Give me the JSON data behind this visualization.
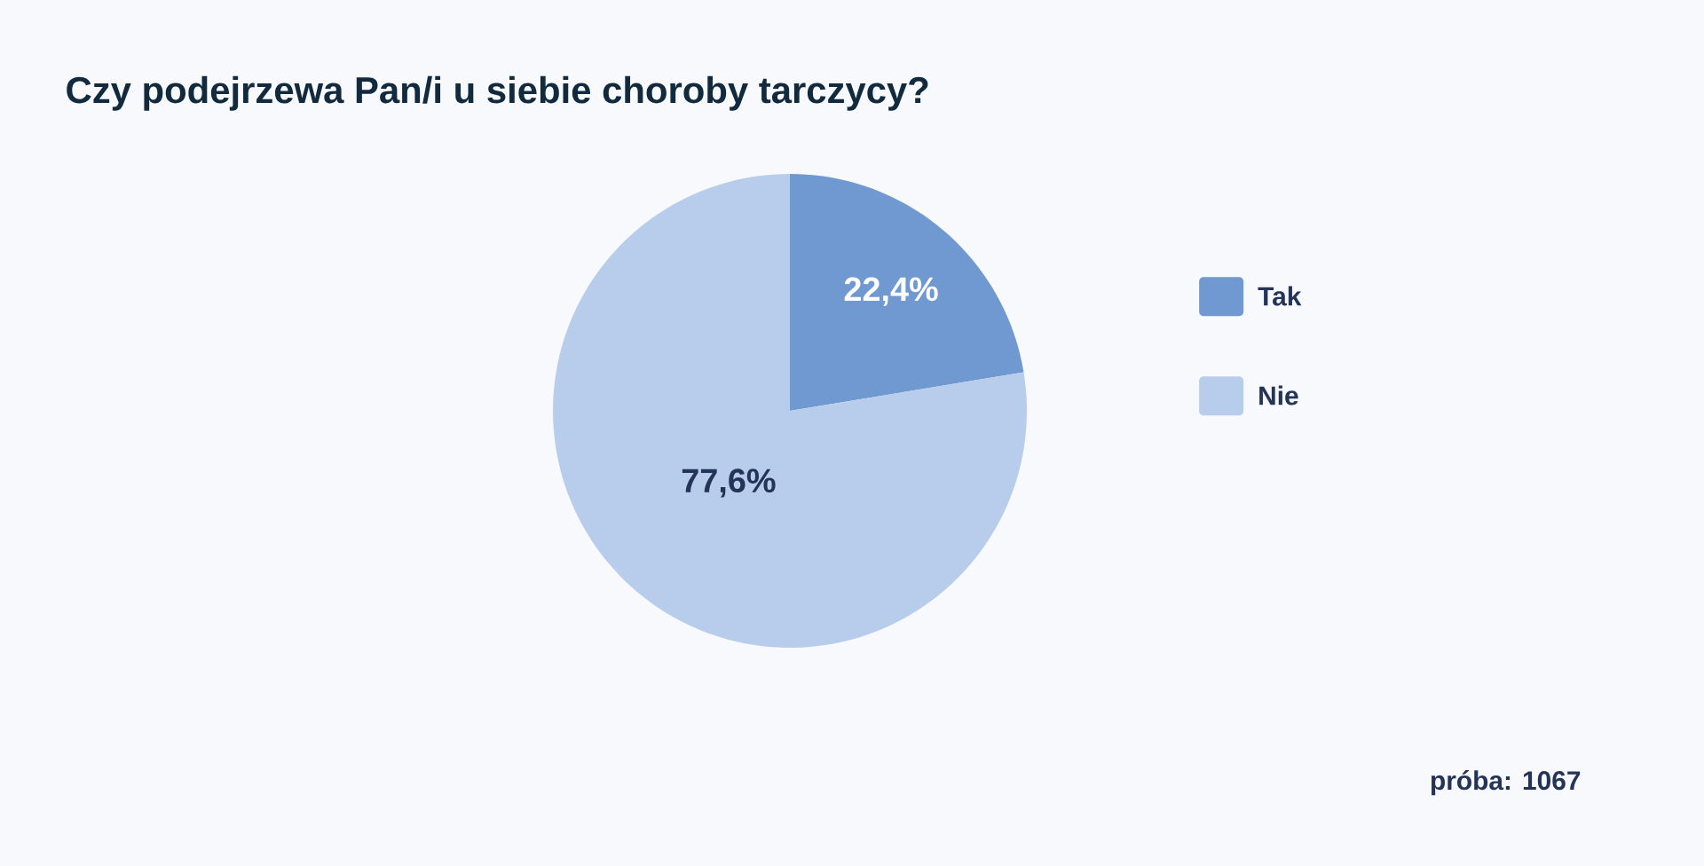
{
  "chart_data": {
    "type": "pie",
    "title": "Czy podejrzewa Pan/i u siebie choroby tarczycy?",
    "categories": [
      "Tak",
      "Nie"
    ],
    "values": [
      22.4,
      77.6
    ],
    "colors": [
      "#7199d1",
      "#b8cdeb"
    ],
    "value_labels": [
      "22,4%",
      "77,6%"
    ],
    "legend": "right",
    "annotations": [
      "próba: 1067"
    ]
  }
}
